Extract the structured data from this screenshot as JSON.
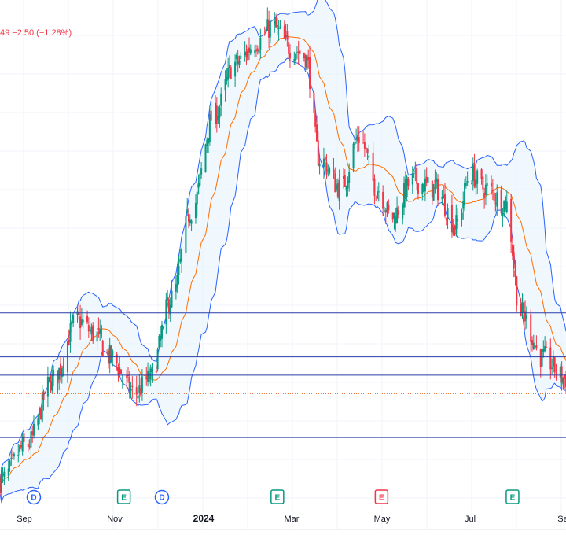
{
  "header": {
    "price_change_text": "49  −2.50 (−1.28%)"
  },
  "colors": {
    "up": "#089981",
    "down": "#f23645",
    "band_line": "#2962ff",
    "band_fill": "#e3f2fd",
    "basis": "#ff6d00",
    "hline": "#2a3ca8",
    "dotted": "#e65100",
    "dividend": "#2962ff",
    "earnings_up": "#089981",
    "earnings_down": "#f23645"
  },
  "chart_data": {
    "type": "candlestick",
    "title": "",
    "indicator": "Bollinger Bands (20, 2)",
    "x_axis": {
      "labels": [
        "Sep",
        "Nov",
        "2024",
        "Mar",
        "May",
        "Jul",
        "Se"
      ],
      "bold_labels": [
        "2024"
      ]
    },
    "date_range": [
      "2023-08-01",
      "2024-09-06"
    ],
    "y_range_pct_of_start": [
      87,
      153
    ],
    "closes_path": [
      [
        "2023-08-01",
        90
      ],
      [
        "2023-08-20",
        95
      ],
      [
        "2023-09-08",
        104
      ],
      [
        "2023-09-25",
        112
      ],
      [
        "2023-10-08",
        110
      ],
      [
        "2023-10-18",
        107
      ],
      [
        "2023-11-05",
        102
      ],
      [
        "2023-11-15",
        104
      ],
      [
        "2023-12-01",
        115
      ],
      [
        "2023-12-15",
        127
      ],
      [
        "2023-12-31",
        140
      ],
      [
        "2024-01-15",
        147
      ],
      [
        "2024-01-31",
        150
      ],
      [
        "2024-02-10",
        152
      ],
      [
        "2024-02-25",
        149
      ],
      [
        "2024-03-05",
        148
      ],
      [
        "2024-03-15",
        134
      ],
      [
        "2024-03-30",
        130
      ],
      [
        "2024-04-12",
        137
      ],
      [
        "2024-04-25",
        130
      ],
      [
        "2024-05-05",
        126
      ],
      [
        "2024-05-20",
        131
      ],
      [
        "2024-06-05",
        130
      ],
      [
        "2024-06-20",
        125
      ],
      [
        "2024-06-30",
        132
      ],
      [
        "2024-07-10",
        130
      ],
      [
        "2024-07-25",
        128
      ],
      [
        "2024-08-05",
        113
      ],
      [
        "2024-08-20",
        107
      ],
      [
        "2024-09-06",
        104
      ]
    ],
    "horizontal_lines_pct": [
      113,
      107,
      104.5,
      96
    ],
    "dotted_line_pct": 102,
    "events": [
      {
        "type": "dividend",
        "letter": "D",
        "date": "2023-08-25"
      },
      {
        "type": "earnings",
        "letter": "E",
        "date": "2023-10-28"
      },
      {
        "type": "dividend",
        "letter": "D",
        "date": "2023-11-24"
      },
      {
        "type": "earnings",
        "letter": "E",
        "date": "2024-02-14"
      },
      {
        "type": "earnings_miss",
        "letter": "E",
        "date": "2024-04-28"
      },
      {
        "type": "earnings",
        "letter": "E",
        "date": "2024-07-30"
      }
    ]
  }
}
